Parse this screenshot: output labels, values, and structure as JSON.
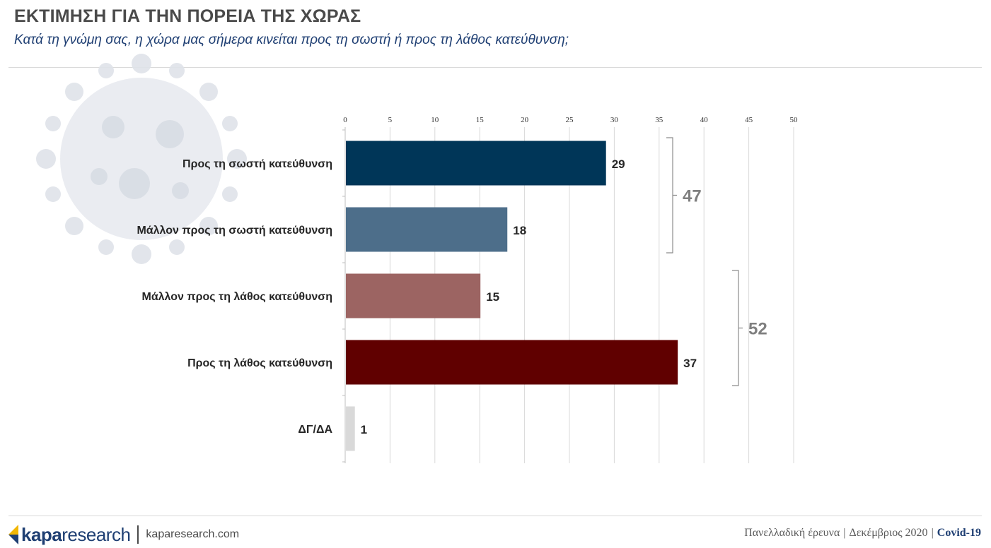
{
  "header": {
    "title": "ΕΚΤΙΜΗΣΗ ΓΙΑ ΤΗΝ ΠΟΡΕΙΑ ΤΗΣ ΧΩΡΑΣ",
    "subtitle": "Κατά τη γνώμη σας, η χώρα μας σήμερα κινείται προς τη σωστή ή προς τη λάθος κατεύθυνση;"
  },
  "chart_data": {
    "type": "bar",
    "orientation": "horizontal",
    "categories": [
      "Προς τη σωστή κατεύθυνση",
      "Μάλλον προς τη σωστή κατεύθυνση",
      "Μάλλον προς τη λάθος κατεύθυνση",
      "Προς τη λάθος κατεύθυνση",
      "ΔΓ/ΔΑ"
    ],
    "values": [
      29,
      18,
      15,
      37,
      1
    ],
    "value_labels": [
      "29",
      "18",
      "15",
      "37",
      "1"
    ],
    "colors": [
      "#003658",
      "#4d6e8a",
      "#9c6462",
      "#600000",
      "#d9d9d9"
    ],
    "xlim": [
      0,
      50
    ],
    "xticks": [
      0,
      5,
      10,
      15,
      20,
      25,
      30,
      35,
      40,
      45,
      50
    ],
    "xticks_position": "top",
    "grid": true,
    "brackets": [
      {
        "label": "47",
        "from": 0,
        "to": 1
      },
      {
        "label": "52",
        "from": 2,
        "to": 3
      }
    ]
  },
  "footer": {
    "logo_kapa": "kapa",
    "logo_research": "research",
    "url": "kaparesearch.com",
    "survey": "Πανελλαδική έρευνα",
    "date": "Δεκέμβριος 2020",
    "tag": "Covid-19",
    "separator": "|"
  }
}
